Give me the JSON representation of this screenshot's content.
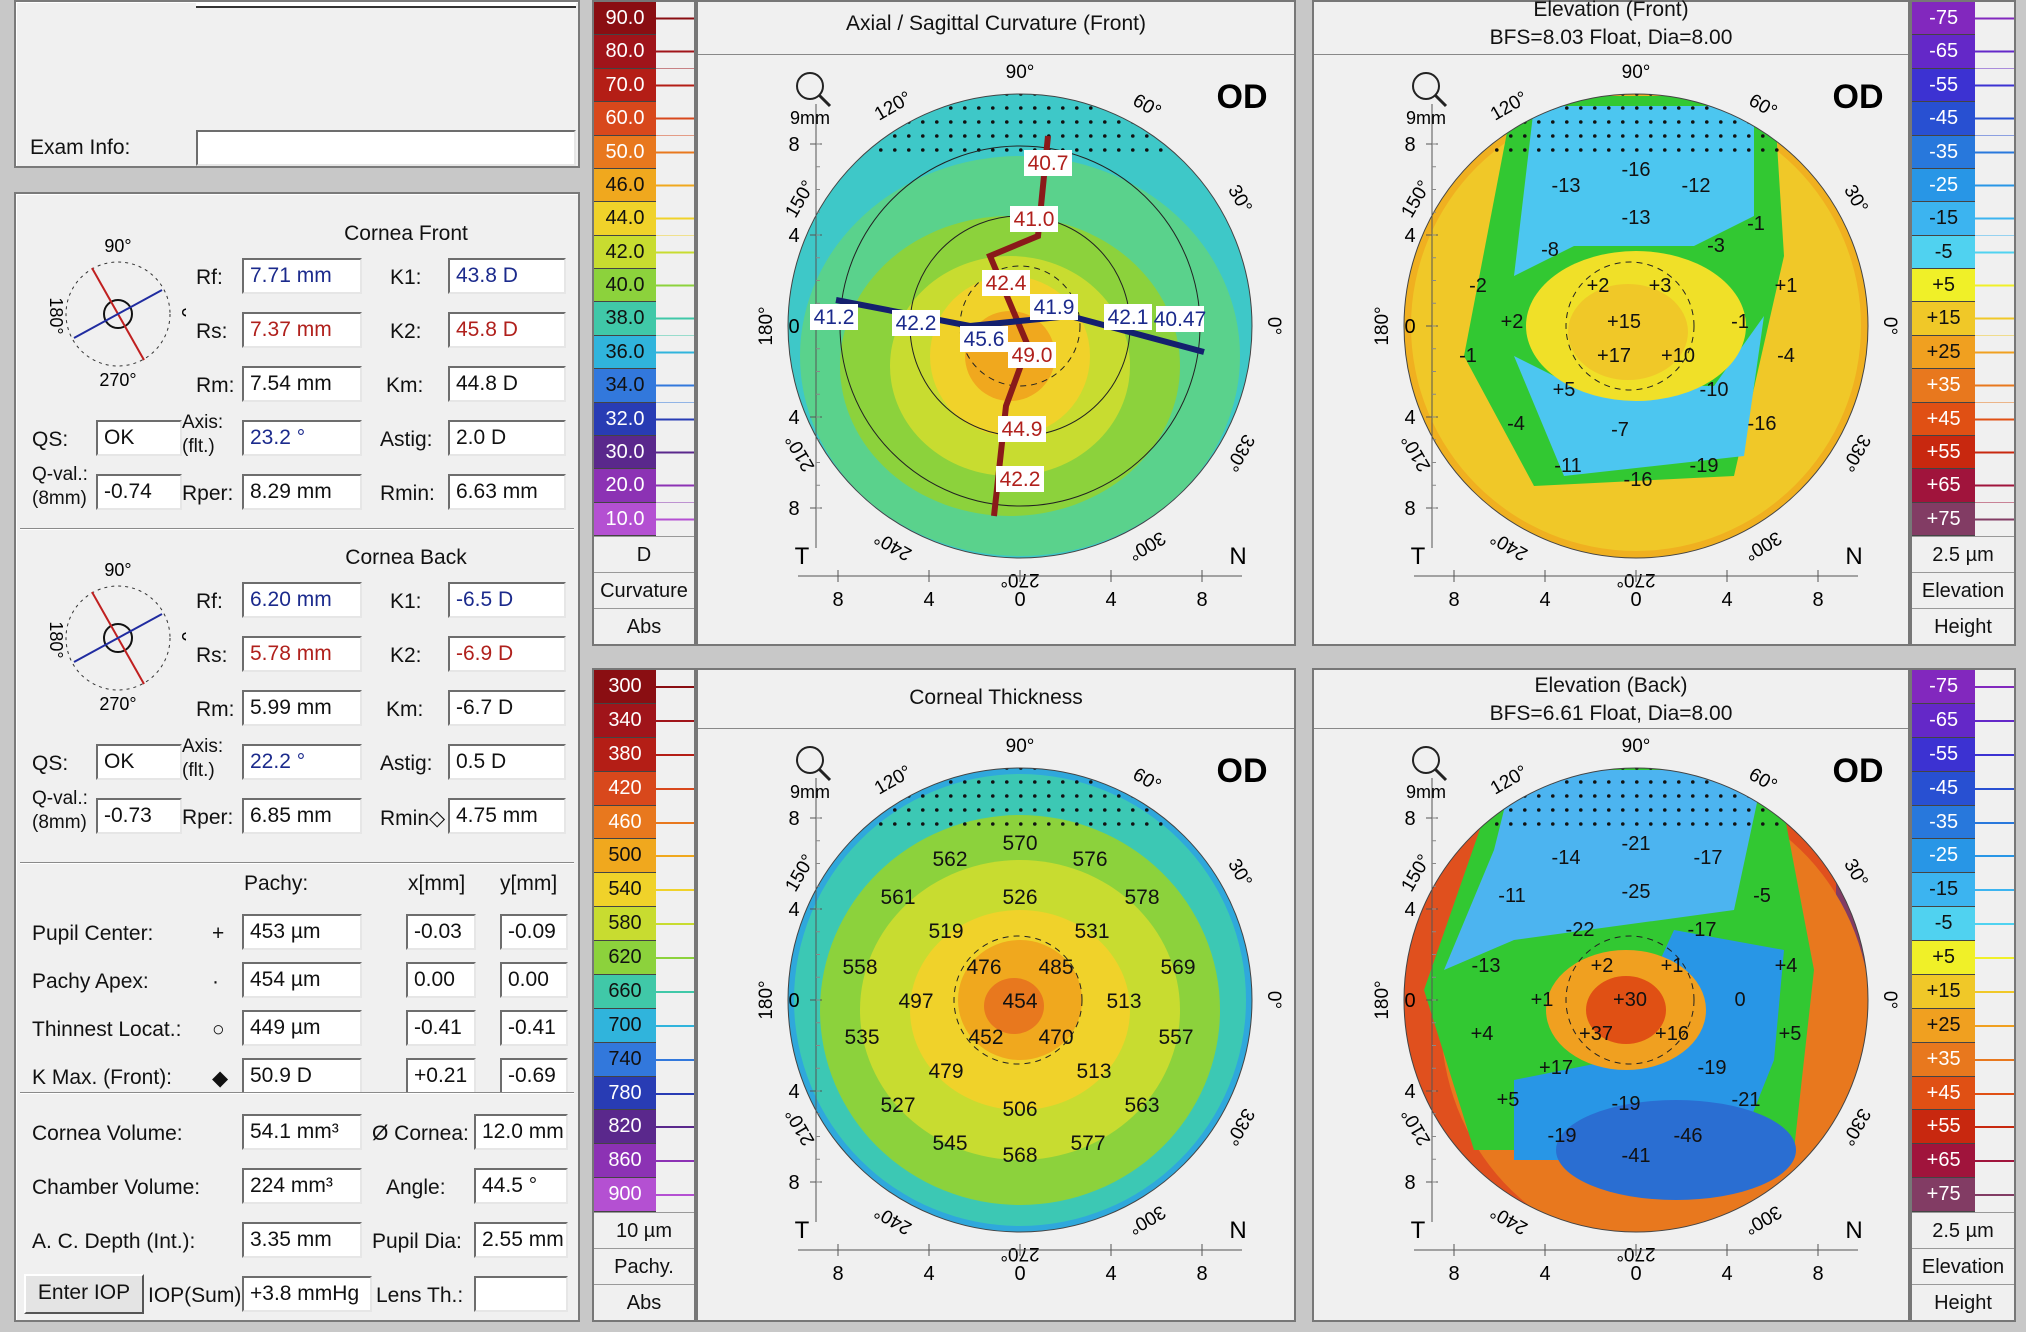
{
  "exam_info": {
    "label": "Exam Info:",
    "value": ""
  },
  "front": {
    "title": "Cornea Front",
    "deg": {
      "top": "90°",
      "left": "180°",
      "right": "0°",
      "bottom": "270°"
    },
    "rf": {
      "label": "Rf:",
      "value": "7.71 mm"
    },
    "rs": {
      "label": "Rs:",
      "value": "7.37 mm"
    },
    "rm": {
      "label": "Rm:",
      "value": "7.54 mm"
    },
    "k1": {
      "label": "K1:",
      "value": "43.8 D"
    },
    "k2": {
      "label": "K2:",
      "value": "45.8 D"
    },
    "km": {
      "label": "Km:",
      "value": "44.8 D"
    },
    "qs": {
      "label": "QS:",
      "value": "OK"
    },
    "axis": {
      "label1": "Axis:",
      "label2": "(flt.)",
      "value": "23.2 °"
    },
    "astig": {
      "label": "Astig:",
      "value": "2.0 D"
    },
    "qval": {
      "label1": "Q-val.:",
      "label2": "(8mm)",
      "value": "-0.74"
    },
    "rper": {
      "label": "Rper:",
      "value": "8.29 mm"
    },
    "rmin": {
      "label": "Rmin:",
      "value": "6.63 mm"
    }
  },
  "back": {
    "title": "Cornea Back",
    "deg": {
      "top": "90°",
      "left": "180°",
      "right": "0°",
      "bottom": "270°"
    },
    "rf": {
      "label": "Rf:",
      "value": "6.20 mm"
    },
    "rs": {
      "label": "Rs:",
      "value": "5.78 mm"
    },
    "rm": {
      "label": "Rm:",
      "value": "5.99 mm"
    },
    "k1": {
      "label": "K1:",
      "value": "-6.5 D"
    },
    "k2": {
      "label": "K2:",
      "value": "-6.9 D"
    },
    "km": {
      "label": "Km:",
      "value": "-6.7 D"
    },
    "qs": {
      "label": "QS:",
      "value": "OK"
    },
    "axis": {
      "label1": "Axis:",
      "label2": "(flt.)",
      "value": "22.2 °"
    },
    "astig": {
      "label": "Astig:",
      "value": "0.5 D"
    },
    "qval": {
      "label1": "Q-val.:",
      "label2": "(8mm)",
      "value": "-0.73"
    },
    "rper": {
      "label": "Rper:",
      "value": "6.85 mm"
    },
    "rmin": {
      "label": "Rmin◇",
      "value": "4.75 mm"
    }
  },
  "pachy": {
    "headers": {
      "pachy": "Pachy:",
      "x": "x[mm]",
      "y": "y[mm]"
    },
    "rows": [
      {
        "label": "Pupil Center:",
        "symbol": "+",
        "pachy": "453 µm",
        "x": "-0.03",
        "y": "-0.09"
      },
      {
        "label": "Pachy Apex:",
        "symbol": "·",
        "pachy": "454 µm",
        "x": "0.00",
        "y": "0.00"
      },
      {
        "label": "Thinnest Locat.:",
        "symbol": "○",
        "pachy": "449 µm",
        "x": "-0.41",
        "y": "-0.41"
      },
      {
        "label": "K Max. (Front):",
        "symbol": "◆",
        "pachy": "50.9 D",
        "x": "+0.21",
        "y": "-0.69"
      }
    ]
  },
  "volumes": {
    "cornea_volume": {
      "label": "Cornea Volume:",
      "value": "54.1 mm³"
    },
    "cornea_dia": {
      "label": "Ø Cornea:",
      "value": "12.0 mm"
    },
    "chamber_volume": {
      "label": "Chamber Volume:",
      "value": "224 mm³"
    },
    "angle": {
      "label": "Angle:",
      "value": "44.5 °"
    },
    "ac_depth": {
      "label": "A. C. Depth (Int.):",
      "value": "3.35 mm"
    },
    "pupil_dia": {
      "label": "Pupil Dia:",
      "value": "2.55 mm"
    },
    "enter_iop": "Enter IOP",
    "iop_sum": {
      "label": "IOP(Sum):",
      "value": "+3.8 mmHg"
    },
    "lens_th": {
      "label": "Lens Th.:",
      "value": ""
    }
  },
  "scales": {
    "curvature": {
      "values": [
        "90.0",
        "80.0",
        "70.0",
        "60.0",
        "50.0",
        "46.0",
        "44.0",
        "42.0",
        "40.0",
        "38.0",
        "36.0",
        "34.0",
        "32.0",
        "30.0",
        "20.0",
        "10.0"
      ],
      "unit": "D",
      "label1": "Curvature",
      "label2": "Abs",
      "colors": [
        "#8a0e12",
        "#a0141a",
        "#b41e16",
        "#d8481c",
        "#e8781e",
        "#f0a81e",
        "#f0d22a",
        "#c8dc30",
        "#8cd23c",
        "#40c8a8",
        "#30b4dc",
        "#3278dc",
        "#283cb4",
        "#5a288c",
        "#8c32b4",
        "#b450d2"
      ]
    },
    "elev_front": {
      "values": [
        "-75",
        "-65",
        "-55",
        "-45",
        "-35",
        "-25",
        "-15",
        "-5",
        "+5",
        "+15",
        "+25",
        "+35",
        "+45",
        "+55",
        "+65",
        "+75"
      ],
      "unit": "2.5 µm",
      "label1": "Elevation",
      "label2": "Height",
      "colors": [
        "#8228be",
        "#6428c8",
        "#3c32d2",
        "#2850d2",
        "#2878dc",
        "#2896e6",
        "#3cb4f0",
        "#50d2f0",
        "#f0f028",
        "#f0c828",
        "#f0a020",
        "#e8781e",
        "#e05014",
        "#c8280f",
        "#a0143c",
        "#823c64"
      ]
    },
    "pachy": {
      "values": [
        "300",
        "340",
        "380",
        "420",
        "460",
        "500",
        "540",
        "580",
        "620",
        "660",
        "700",
        "740",
        "780",
        "820",
        "860",
        "900"
      ],
      "unit": "10 µm",
      "label1": "Pachy.",
      "label2": "Abs",
      "colors": [
        "#8a0e12",
        "#a0141a",
        "#b41e16",
        "#d8481c",
        "#e8781e",
        "#f0a81e",
        "#f0d22a",
        "#c8dc30",
        "#8cd23c",
        "#40c8a8",
        "#30b4dc",
        "#3278dc",
        "#283cb4",
        "#5a288c",
        "#8c32b4",
        "#b450d2"
      ]
    },
    "elev_back": {
      "values": [
        "-75",
        "-65",
        "-55",
        "-45",
        "-35",
        "-25",
        "-15",
        "-5",
        "+5",
        "+15",
        "+25",
        "+35",
        "+45",
        "+55",
        "+65",
        "+75"
      ],
      "unit": "2.5 µm",
      "label1": "Elevation",
      "label2": "Height",
      "colors": [
        "#8228be",
        "#6428c8",
        "#3c32d2",
        "#2850d2",
        "#2878dc",
        "#2896e6",
        "#3cb4f0",
        "#50d2f0",
        "#f0f028",
        "#f0c828",
        "#f0a020",
        "#e8781e",
        "#e05014",
        "#c8280f",
        "#a0143c",
        "#823c64"
      ]
    }
  },
  "maps": {
    "axial": {
      "title": "Axial / Sagittal Curvature (Front)",
      "eye": "OD",
      "zoom": "9mm",
      "temporal": "T",
      "nasal": "N",
      "ticks": [
        "8",
        "4",
        "0",
        "4",
        "8"
      ],
      "angles": [
        "90°",
        "60°",
        "30°",
        "0°",
        "330°",
        "300°",
        "270°",
        "240°",
        "210°",
        "180°",
        "150°",
        "120°"
      ],
      "steep_values": [
        "40.7",
        "41.0",
        "42.4",
        "49.0",
        "44.9",
        "42.2"
      ],
      "flat_values": [
        "41.2",
        "42.2",
        "45.6",
        "41.9",
        "42.1",
        "40.47"
      ]
    },
    "elev_front": {
      "title": "Elevation (Front)",
      "subtitle": "BFS=8.03 Float, Dia=8.00",
      "eye": "OD",
      "zoom": "9mm",
      "temporal": "T",
      "nasal": "N",
      "ticks": [
        "8",
        "4",
        "0",
        "4",
        "8"
      ],
      "angles": [
        "90°",
        "60°",
        "30°",
        "0°",
        "330°",
        "300°",
        "270°",
        "240°",
        "210°",
        "180°",
        "150°",
        "120°"
      ],
      "values": [
        "-16",
        "-13",
        "-12",
        "-13",
        "-1",
        "-8",
        "-3",
        "-2",
        "+2",
        "+3",
        "+1",
        "+2",
        "+15",
        "-1",
        "-1",
        "+17",
        "+10",
        "-4",
        "+5",
        "-10",
        "-4",
        "-7",
        "-16",
        "-11",
        "-16",
        "-19"
      ]
    },
    "thickness": {
      "title": "Corneal Thickness",
      "eye": "OD",
      "zoom": "9mm",
      "temporal": "T",
      "nasal": "N",
      "ticks": [
        "8",
        "4",
        "0",
        "4",
        "8"
      ],
      "angles": [
        "90°",
        "60°",
        "30°",
        "0°",
        "330°",
        "300°",
        "270°",
        "240°",
        "210°",
        "180°",
        "150°",
        "120°"
      ],
      "values": [
        "570",
        "562",
        "576",
        "526",
        "561",
        "578",
        "519",
        "531",
        "558",
        "476",
        "485",
        "569",
        "497",
        "454",
        "513",
        "535",
        "452",
        "470",
        "557",
        "479",
        "513",
        "527",
        "506",
        "563",
        "545",
        "568",
        "577"
      ]
    },
    "elev_back": {
      "title": "Elevation (Back)",
      "subtitle": "BFS=6.61 Float, Dia=8.00",
      "eye": "OD",
      "zoom": "9mm",
      "temporal": "T",
      "nasal": "N",
      "ticks": [
        "8",
        "4",
        "0",
        "4",
        "8"
      ],
      "angles": [
        "90°",
        "60°",
        "30°",
        "0°",
        "330°",
        "300°",
        "270°",
        "240°",
        "210°",
        "180°",
        "150°",
        "120°"
      ],
      "values": [
        "-21",
        "-14",
        "-17",
        "-25",
        "-11",
        "-5",
        "-22",
        "-17",
        "-13",
        "+2",
        "+1",
        "+4",
        "+1",
        "+30",
        "0",
        "+4",
        "+37",
        "+16",
        "+5",
        "+17",
        "-19",
        "+5",
        "-19",
        "-21",
        "-19",
        "-46",
        "-41"
      ]
    }
  }
}
